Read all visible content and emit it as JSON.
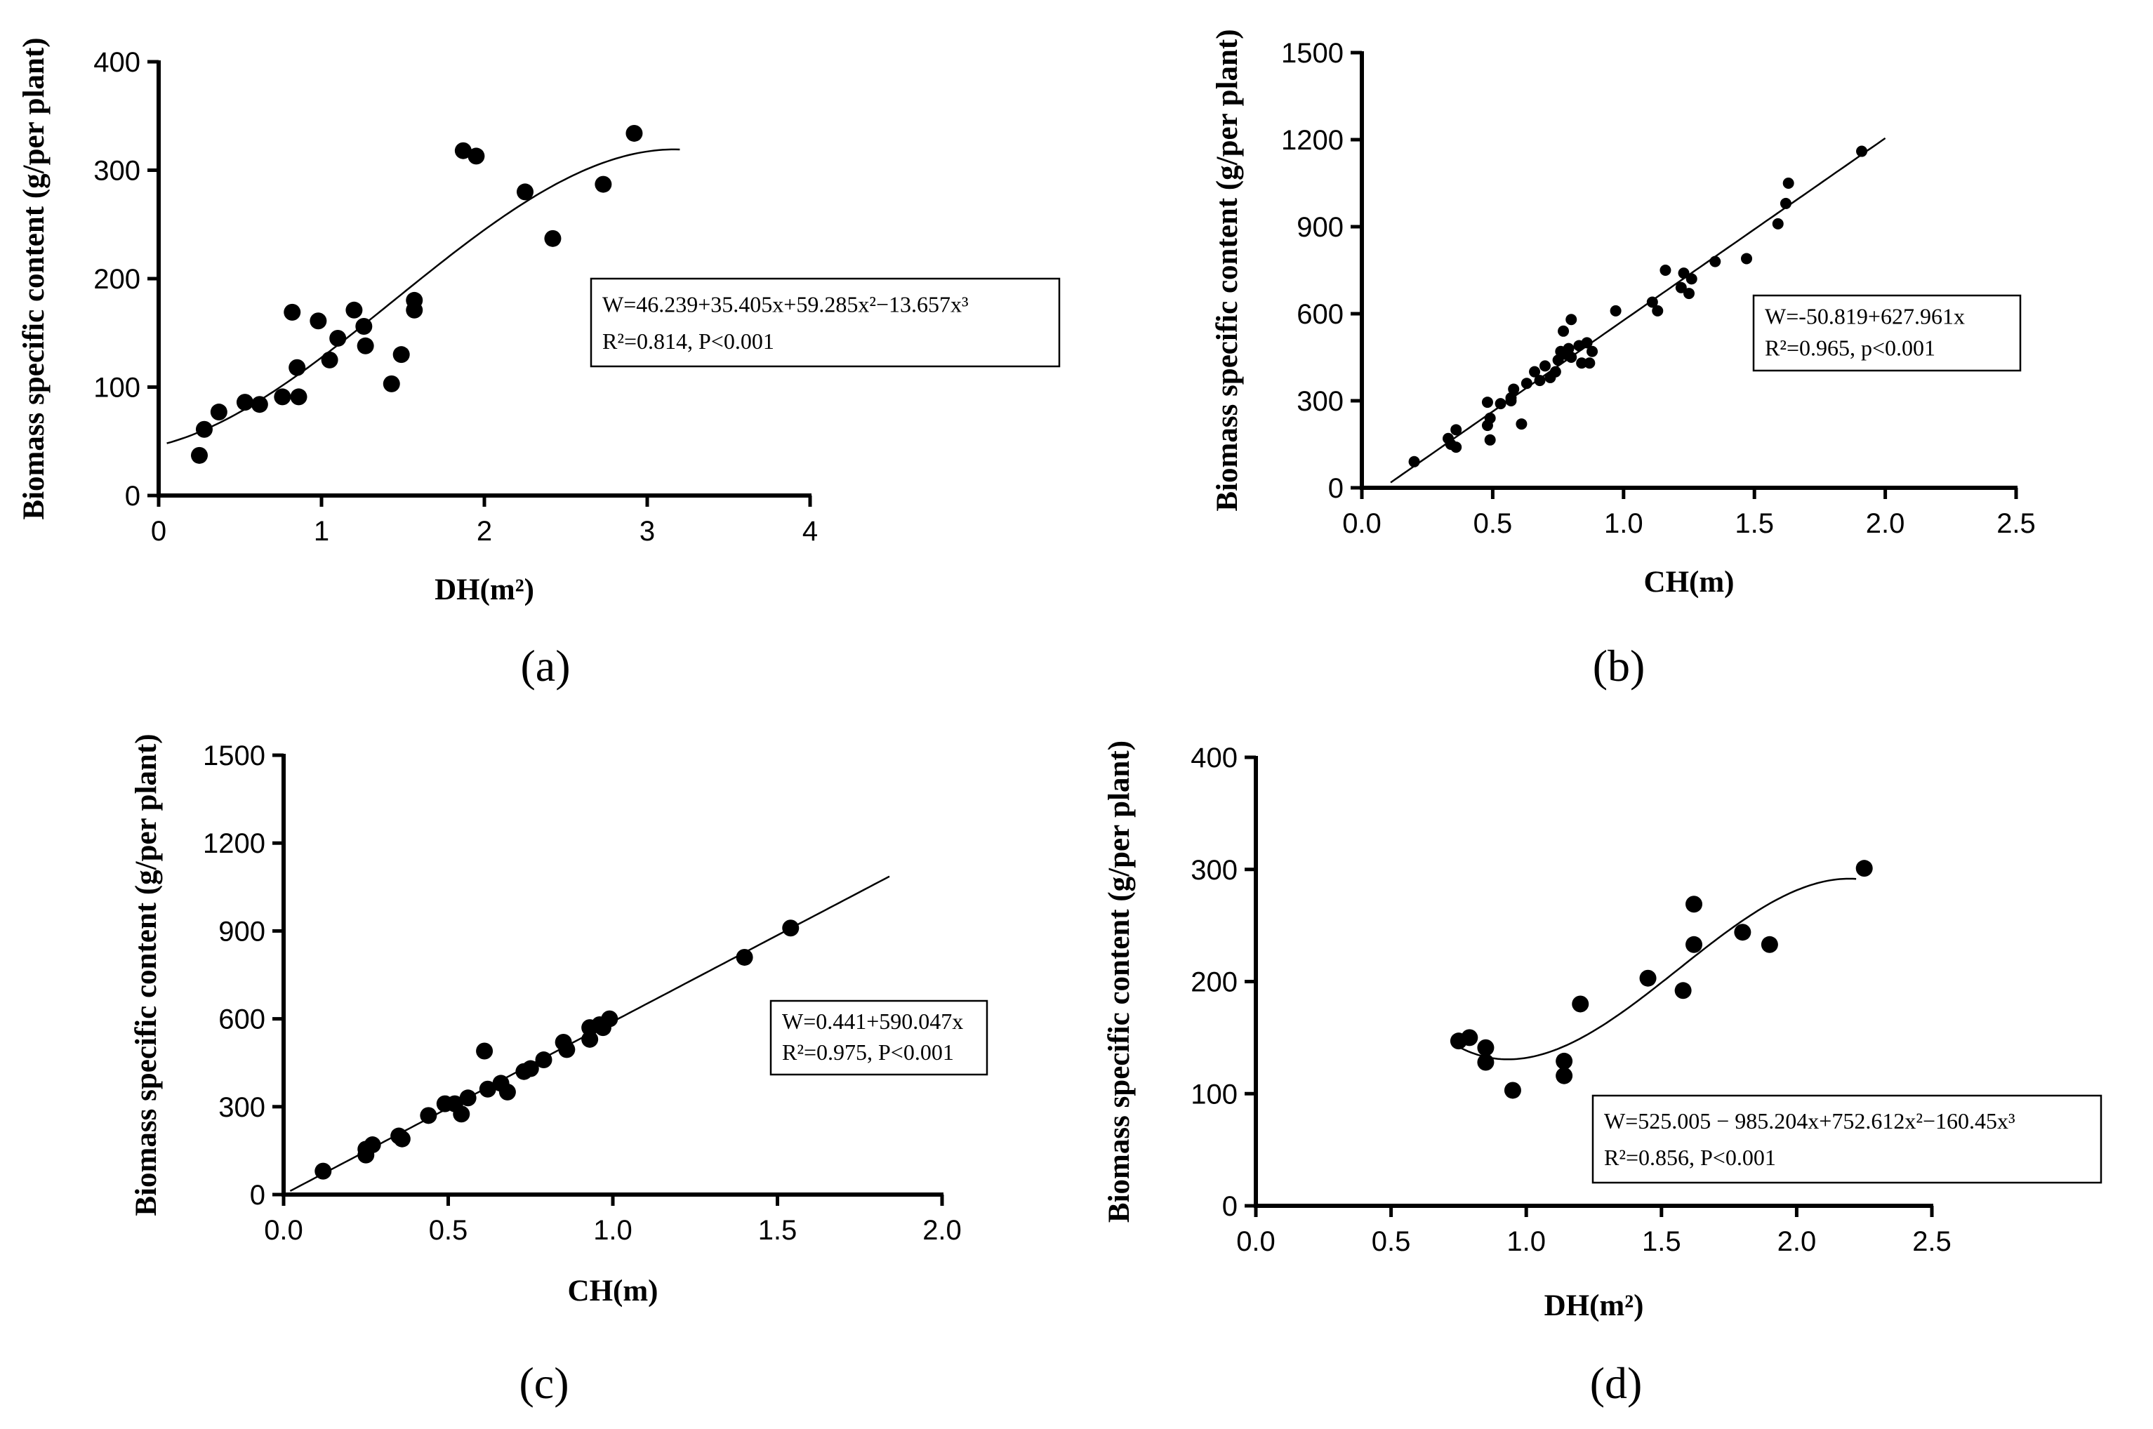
{
  "chart_data": [
    {
      "type": "scatter",
      "panel_label": "(a)",
      "xlabel": "DH(m²)",
      "ylabel": "Biomass specific content (g/per plant)",
      "xlim": [
        0,
        4
      ],
      "ylim": [
        0,
        400
      ],
      "xticks": [
        0,
        1,
        2,
        3,
        4
      ],
      "xtick_labels": [
        "0",
        "1",
        "2",
        "3",
        "4"
      ],
      "yticks": [
        0,
        100,
        200,
        300,
        400
      ],
      "ytick_labels": [
        "0",
        "100",
        "200",
        "300",
        "400"
      ],
      "fit": {
        "kind": "cubic",
        "coef": [
          46.239,
          35.405,
          59.285,
          -13.657
        ],
        "x_range": [
          0.05,
          3.2
        ]
      },
      "annotation": {
        "equation": "W=46.239+35.405x+59.285x²−13.657x³",
        "stats": "R²=0.814, P<0.001",
        "position": "middle-right"
      },
      "points": [
        [
          0.25,
          37
        ],
        [
          0.28,
          61
        ],
        [
          0.37,
          77
        ],
        [
          0.53,
          86
        ],
        [
          0.62,
          84
        ],
        [
          0.76,
          91
        ],
        [
          0.82,
          169
        ],
        [
          0.85,
          118
        ],
        [
          0.86,
          91
        ],
        [
          0.98,
          161
        ],
        [
          1.05,
          125
        ],
        [
          1.1,
          145
        ],
        [
          1.2,
          171
        ],
        [
          1.26,
          156
        ],
        [
          1.27,
          138
        ],
        [
          1.43,
          103
        ],
        [
          1.49,
          130
        ],
        [
          1.57,
          171
        ],
        [
          1.57,
          180
        ],
        [
          1.87,
          318
        ],
        [
          1.95,
          313
        ],
        [
          2.25,
          280
        ],
        [
          2.42,
          237
        ],
        [
          2.73,
          287
        ],
        [
          2.92,
          334
        ]
      ]
    },
    {
      "type": "scatter",
      "panel_label": "(b)",
      "xlabel": "CH(m)",
      "ylabel": "Biomass specific content (g/per plant)",
      "xlim": [
        0,
        2.5
      ],
      "ylim": [
        0,
        1500
      ],
      "xticks": [
        0,
        0.5,
        1,
        1.5,
        2,
        2.5
      ],
      "xtick_labels": [
        "0.0",
        "0.5",
        "1.0",
        "1.5",
        "2.0",
        "2.5"
      ],
      "yticks": [
        0,
        300,
        600,
        900,
        1200,
        1500
      ],
      "ytick_labels": [
        "0",
        "300",
        "600",
        "900",
        "1200",
        "1500"
      ],
      "fit": {
        "kind": "linear",
        "coef": [
          -50.819,
          627.961
        ],
        "x_range": [
          0.11,
          2.0
        ]
      },
      "annotation": {
        "equation": "W=-50.819+627.961x",
        "stats": "R²=0.965,  p<0.001",
        "position": "middle-right"
      },
      "points": [
        [
          0.2,
          90
        ],
        [
          0.33,
          170
        ],
        [
          0.34,
          150
        ],
        [
          0.36,
          140
        ],
        [
          0.36,
          200
        ],
        [
          0.48,
          295
        ],
        [
          0.48,
          215
        ],
        [
          0.49,
          165
        ],
        [
          0.49,
          240
        ],
        [
          0.53,
          290
        ],
        [
          0.57,
          310
        ],
        [
          0.57,
          300
        ],
        [
          0.58,
          340
        ],
        [
          0.61,
          220
        ],
        [
          0.63,
          360
        ],
        [
          0.66,
          400
        ],
        [
          0.68,
          370
        ],
        [
          0.7,
          420
        ],
        [
          0.72,
          380
        ],
        [
          0.74,
          400
        ],
        [
          0.75,
          440
        ],
        [
          0.76,
          470
        ],
        [
          0.77,
          540
        ],
        [
          0.78,
          460
        ],
        [
          0.79,
          480
        ],
        [
          0.8,
          580
        ],
        [
          0.8,
          450
        ],
        [
          0.83,
          490
        ],
        [
          0.84,
          430
        ],
        [
          0.86,
          500
        ],
        [
          0.87,
          430
        ],
        [
          0.88,
          470
        ],
        [
          0.97,
          610
        ],
        [
          1.11,
          640
        ],
        [
          1.13,
          610
        ],
        [
          1.16,
          750
        ],
        [
          1.22,
          690
        ],
        [
          1.23,
          740
        ],
        [
          1.25,
          670
        ],
        [
          1.26,
          720
        ],
        [
          1.35,
          780
        ],
        [
          1.47,
          790
        ],
        [
          1.59,
          910
        ],
        [
          1.62,
          980
        ],
        [
          1.63,
          1050
        ],
        [
          1.91,
          1160
        ]
      ]
    },
    {
      "type": "scatter",
      "panel_label": "(c)",
      "xlabel": "CH(m)",
      "ylabel": "Biomass specific content (g/per plant)",
      "xlim": [
        0,
        2
      ],
      "ylim": [
        0,
        1500
      ],
      "xticks": [
        0,
        0.5,
        1,
        1.5,
        2
      ],
      "xtick_labels": [
        "0.0",
        "0.5",
        "1.0",
        "1.5",
        "2.0"
      ],
      "yticks": [
        0,
        300,
        600,
        900,
        1200,
        1500
      ],
      "ytick_labels": [
        "0",
        "300",
        "600",
        "900",
        "1200",
        "1500"
      ],
      "fit": {
        "kind": "linear",
        "coef": [
          0.441,
          590.047
        ],
        "x_range": [
          0.02,
          1.84
        ]
      },
      "annotation": {
        "equation": "W=0.441+590.047x",
        "stats": "R²=0.975,   P<0.001",
        "position": "middle-right"
      },
      "points": [
        [
          0.12,
          80
        ],
        [
          0.25,
          135
        ],
        [
          0.25,
          155
        ],
        [
          0.27,
          170
        ],
        [
          0.35,
          200
        ],
        [
          0.36,
          190
        ],
        [
          0.44,
          270
        ],
        [
          0.49,
          310
        ],
        [
          0.52,
          310
        ],
        [
          0.54,
          275
        ],
        [
          0.56,
          330
        ],
        [
          0.61,
          490
        ],
        [
          0.62,
          360
        ],
        [
          0.66,
          380
        ],
        [
          0.68,
          350
        ],
        [
          0.73,
          420
        ],
        [
          0.75,
          430
        ],
        [
          0.79,
          460
        ],
        [
          0.85,
          520
        ],
        [
          0.86,
          495
        ],
        [
          0.93,
          530
        ],
        [
          0.93,
          570
        ],
        [
          0.96,
          580
        ],
        [
          0.97,
          570
        ],
        [
          0.99,
          600
        ],
        [
          1.4,
          810
        ],
        [
          1.54,
          910
        ]
      ]
    },
    {
      "type": "scatter",
      "panel_label": "(d)",
      "xlabel": "DH(m²)",
      "ylabel": "Biomass specific content (g/per plant)",
      "xlim": [
        0,
        2.5
      ],
      "ylim": [
        0,
        400
      ],
      "xticks": [
        0,
        0.5,
        1,
        1.5,
        2,
        2.5
      ],
      "xtick_labels": [
        "0.0",
        "0.5",
        "1.0",
        "1.5",
        "2.0",
        "2.5"
      ],
      "yticks": [
        0,
        100,
        200,
        300,
        400
      ],
      "ytick_labels": [
        "0",
        "100",
        "200",
        "300",
        "400"
      ],
      "fit": {
        "kind": "cubic",
        "coef": [
          525.005,
          -985.204,
          752.612,
          -160.45
        ],
        "x_range": [
          0.76,
          2.22
        ]
      },
      "annotation": {
        "equation": "W=525.005 − 985.204x+752.612x²−160.45x³",
        "stats": "R²=0.856, P<0.001",
        "position": "lower-right"
      },
      "points": [
        [
          0.75,
          147
        ],
        [
          0.79,
          150
        ],
        [
          0.85,
          141
        ],
        [
          0.85,
          128
        ],
        [
          0.95,
          103
        ],
        [
          1.14,
          129
        ],
        [
          1.14,
          116
        ],
        [
          1.2,
          180
        ],
        [
          1.45,
          203
        ],
        [
          1.58,
          192
        ],
        [
          1.62,
          233
        ],
        [
          1.62,
          269
        ],
        [
          1.8,
          244
        ],
        [
          1.9,
          233
        ],
        [
          2.25,
          301
        ]
      ]
    }
  ]
}
